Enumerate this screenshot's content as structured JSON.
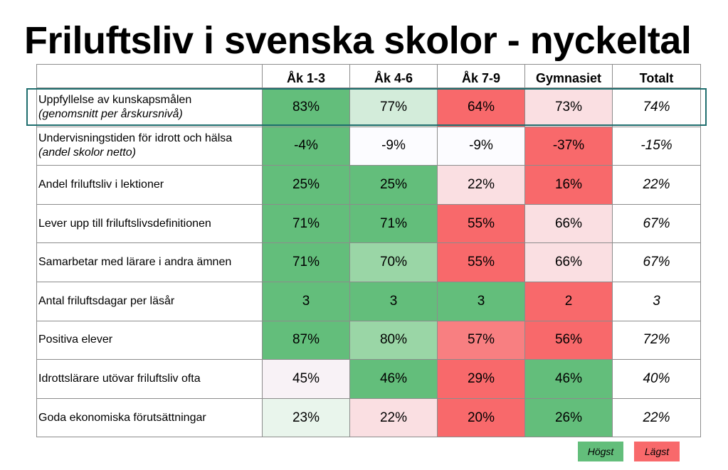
{
  "title": "Friluftsliv i svenska skolor - nyckeltal",
  "colors": {
    "dark_green": "#63be7b",
    "mid_green": "#9ad6a6",
    "light_green": "#d3ecda",
    "very_light_green": "#e9f5ec",
    "white": "#fbfbfd",
    "light_red": "#fadfe2",
    "red": "#f8696b",
    "mid_red": "#f87f81"
  },
  "table": {
    "headers": [
      "Åk 1-3",
      "Åk 4-6",
      "Åk 7-9",
      "Gymnasiet",
      "Totalt"
    ],
    "rows": [
      {
        "label": "Uppfyllelse av kunskapsmålen",
        "sub": "(genomsnitt per årskursnivå)",
        "values": [
          "83%",
          "77%",
          "64%",
          "73%"
        ],
        "colors": [
          "#63be7b",
          "#d3ecda",
          "#f8696b",
          "#fadfe2"
        ],
        "total": "74%"
      },
      {
        "label": "Undervisningstiden för idrott och hälsa",
        "sub": "(andel skolor netto)",
        "values": [
          "-4%",
          "-9%",
          "-9%",
          "-37%"
        ],
        "colors": [
          "#63be7b",
          "#fcfcff",
          "#fcfcff",
          "#f8696b"
        ],
        "total": "-15%"
      },
      {
        "label": "Andel friluftsliv i lektioner",
        "sub": "",
        "values": [
          "25%",
          "25%",
          "22%",
          "16%"
        ],
        "colors": [
          "#63be7b",
          "#63be7b",
          "#fadfe2",
          "#f8696b"
        ],
        "total": "22%"
      },
      {
        "label": "Lever upp till friluftslivsdefinitionen",
        "sub": "",
        "values": [
          "71%",
          "71%",
          "55%",
          "66%"
        ],
        "colors": [
          "#63be7b",
          "#63be7b",
          "#f8696b",
          "#fadfe2"
        ],
        "total": "67%"
      },
      {
        "label": "Samarbetar med lärare i andra ämnen",
        "sub": "",
        "values": [
          "71%",
          "70%",
          "55%",
          "66%"
        ],
        "colors": [
          "#63be7b",
          "#9ad6a6",
          "#f8696b",
          "#fadfe2"
        ],
        "total": "67%"
      },
      {
        "label": "Antal friluftsdagar per läsår",
        "sub": "",
        "values": [
          "3",
          "3",
          "3",
          "2"
        ],
        "colors": [
          "#63be7b",
          "#63be7b",
          "#63be7b",
          "#f8696b"
        ],
        "total": "3"
      },
      {
        "label": "Positiva elever",
        "sub": "",
        "values": [
          "87%",
          "80%",
          "57%",
          "56%"
        ],
        "colors": [
          "#63be7b",
          "#9ad6a6",
          "#f87f81",
          "#f8696b"
        ],
        "total": "72%"
      },
      {
        "label": "Idrottslärare utövar friluftsliv ofta",
        "sub": "",
        "values": [
          "45%",
          "46%",
          "29%",
          "46%"
        ],
        "colors": [
          "#f8f2f6",
          "#63be7b",
          "#f8696b",
          "#63be7b"
        ],
        "total": "40%"
      },
      {
        "label": "Goda ekonomiska förutsättningar",
        "sub": "",
        "values": [
          "23%",
          "22%",
          "20%",
          "26%"
        ],
        "colors": [
          "#e9f5ec",
          "#fadfe2",
          "#f8696b",
          "#63be7b"
        ],
        "total": "22%"
      }
    ]
  },
  "legend": {
    "high_label": "Högst",
    "high_color": "#63be7b",
    "low_label": "Lägst",
    "low_color": "#f8696b"
  }
}
